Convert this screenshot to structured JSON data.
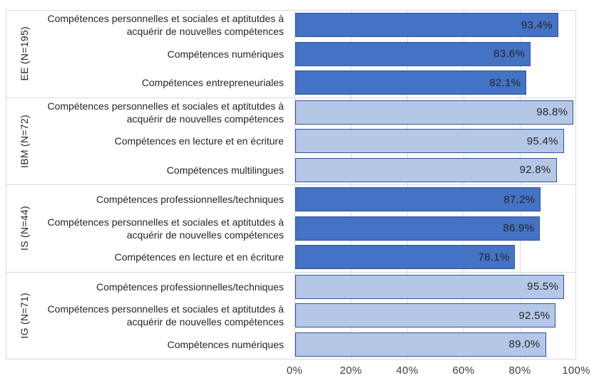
{
  "chart_data": {
    "type": "bar",
    "orientation": "horizontal",
    "title": "",
    "xlabel": "",
    "ylabel": "",
    "x_axis": {
      "min": 0,
      "max": 100,
      "ticks": [
        "0%",
        "20%",
        "40%",
        "60%",
        "80%",
        "100%"
      ],
      "grid": true
    },
    "colors": {
      "dark_bar_fill": "#4472C4",
      "light_bar_fill": "#B4C7E7",
      "bar_border": "#2E5597",
      "gridline": "#D9D9D9",
      "text": "#262626",
      "axis_text": "#404040"
    },
    "groups": [
      {
        "name": "EE (N=195)",
        "bar_style": "dark",
        "items": [
          {
            "label": "Compétences personnelles et sociales et aptitutdes à acquérir de nouvelles compétences",
            "value": 93.4,
            "display": "93.4%"
          },
          {
            "label": "Compétences numériques",
            "value": 83.6,
            "display": "83.6%"
          },
          {
            "label": "Compétences entrepreneuriales",
            "value": 82.1,
            "display": "82.1%"
          }
        ]
      },
      {
        "name": "IBM (N=72)",
        "bar_style": "light",
        "items": [
          {
            "label": "Compétences personnelles et sociales et aptitutdes à acquérir de nouvelles compétences",
            "value": 98.8,
            "display": "98.8%"
          },
          {
            "label": "Compétences en lecture et en écriture",
            "value": 95.4,
            "display": "95.4%"
          },
          {
            "label": "Compétences multilingues",
            "value": 92.8,
            "display": "92.8%"
          }
        ]
      },
      {
        "name": "IS (N=44)",
        "bar_style": "dark",
        "items": [
          {
            "label": "Compétences professionnelles/techniques",
            "value": 87.2,
            "display": "87.2%"
          },
          {
            "label": "Compétences personnelles et sociales et aptitutdes à acquérir de nouvelles compétences",
            "value": 86.9,
            "display": "86.9%"
          },
          {
            "label": "Compétences en lecture et en écriture",
            "value": 78.1,
            "display": "78.1%"
          }
        ]
      },
      {
        "name": "IG (N=71)",
        "bar_style": "light",
        "items": [
          {
            "label": "Compétences professionnelles/techniques",
            "value": 95.5,
            "display": "95.5%"
          },
          {
            "label": "Compétences personnelles et sociales et aptitutdes à acquérir de nouvelles compétences",
            "value": 92.5,
            "display": "92.5%"
          },
          {
            "label": "Compétences numériques",
            "value": 89.0,
            "display": "89.0%"
          }
        ]
      }
    ]
  }
}
